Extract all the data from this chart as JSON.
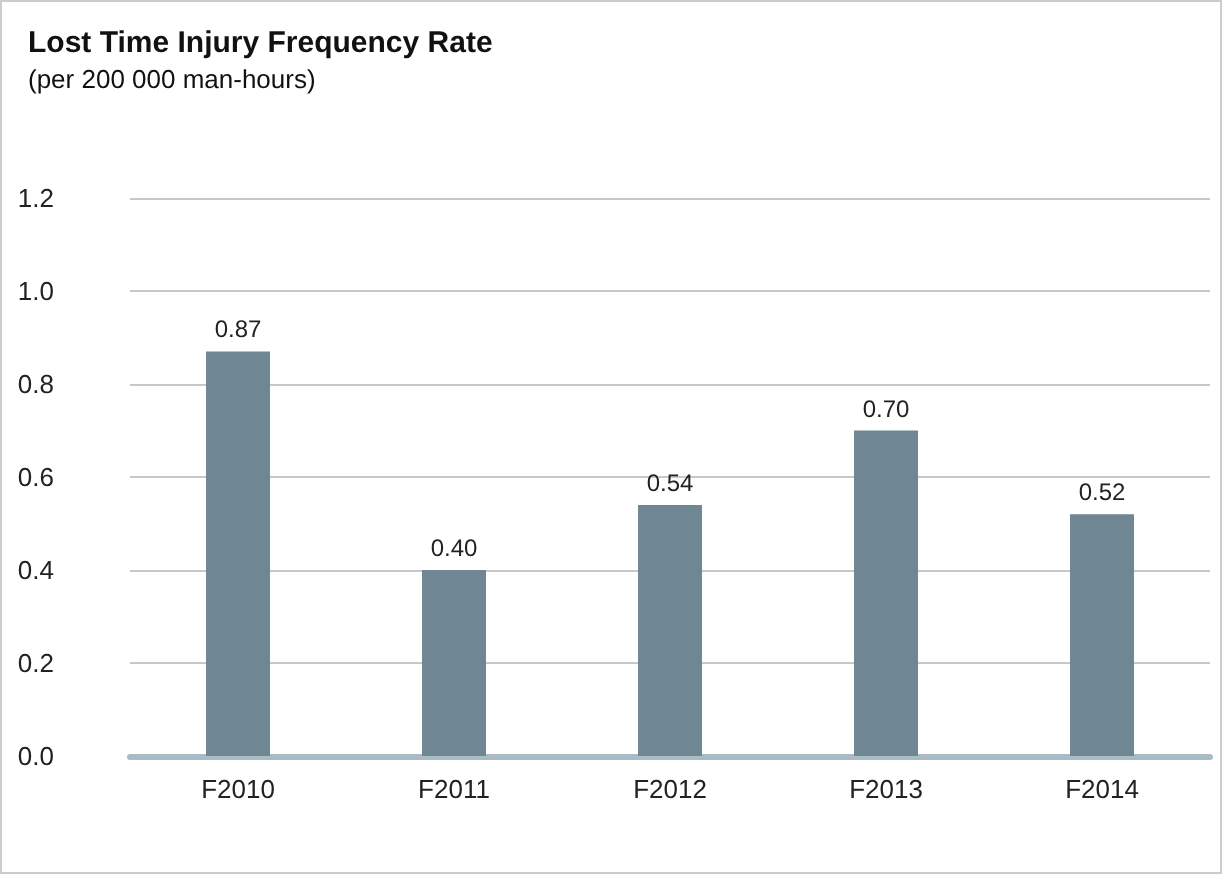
{
  "chart_data": {
    "type": "bar",
    "title": "Lost Time Injury Frequency Rate",
    "subtitle": "(per 200 000 man-hours)",
    "categories": [
      "F2010",
      "F2011",
      "F2012",
      "F2013",
      "F2014"
    ],
    "values": [
      0.87,
      0.4,
      0.54,
      0.7,
      0.52
    ],
    "value_labels": [
      "0.87",
      "0.40",
      "0.54",
      "0.70",
      "0.52"
    ],
    "color": "#6e8792",
    "ylim": [
      0,
      1.2
    ],
    "yticks": [
      {
        "value": 0,
        "label": "0.0"
      },
      {
        "value": 0.2,
        "label": "0.2"
      },
      {
        "value": 0.4,
        "label": "0.4"
      },
      {
        "value": 0.6,
        "label": "0.6"
      },
      {
        "value": 0.8,
        "label": "0.8"
      },
      {
        "value": 1,
        "label": "1.0"
      },
      {
        "value": 1.2,
        "label": "1.2"
      }
    ],
    "grid": "y"
  }
}
